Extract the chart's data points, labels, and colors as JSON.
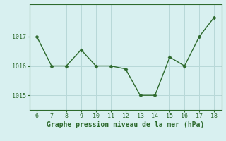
{
  "x": [
    6,
    7,
    8,
    9,
    10,
    11,
    12,
    13,
    14,
    15,
    16,
    17,
    18
  ],
  "y": [
    1017.0,
    1016.0,
    1016.0,
    1016.55,
    1016.0,
    1016.0,
    1015.9,
    1015.0,
    1015.0,
    1016.3,
    1016.0,
    1017.0,
    1017.65
  ],
  "line_color": "#2d6a2d",
  "marker": "D",
  "marker_size": 2.5,
  "bg_color": "#d8f0f0",
  "grid_color": "#b8d8d8",
  "xlabel": "Graphe pression niveau de la mer (hPa)",
  "xlabel_color": "#2d6a2d",
  "tick_color": "#2d6a2d",
  "spine_color": "#2d6a2d",
  "ylim": [
    1014.5,
    1018.1
  ],
  "yticks": [
    1015,
    1016,
    1017
  ],
  "xlim": [
    5.5,
    18.5
  ],
  "xticks": [
    6,
    7,
    8,
    9,
    10,
    11,
    12,
    13,
    14,
    15,
    16,
    17,
    18
  ],
  "xlabel_fontsize": 7,
  "tick_fontsize": 6,
  "linewidth": 1.0
}
